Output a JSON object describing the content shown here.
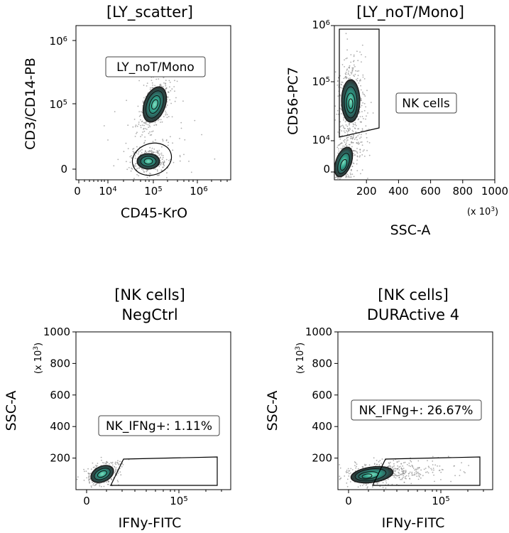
{
  "chart_data": [
    {
      "type": "scatter",
      "panel": "top-left",
      "title": "[LY_scatter]",
      "xlabel": "CD45-KrO",
      "ylabel": "CD3/CD14-PB",
      "x_scale": "biexponential",
      "y_scale": "biexponential",
      "x_ticks": [
        "0",
        "10^4",
        "10^5",
        "10^6"
      ],
      "y_ticks": [
        "0",
        "10^5",
        "10^6"
      ],
      "gate_label": "LY_noT/Mono",
      "populations": [
        {
          "x_center": "1e5",
          "y_center": "1e5"
        },
        {
          "x_center": "1e5",
          "y_center": "0"
        }
      ]
    },
    {
      "type": "scatter",
      "panel": "top-right",
      "title": "[LY_noT/Mono]",
      "xlabel": "SSC-A",
      "ylabel": "CD56-PC7",
      "x_multiplier": "(x 10^3)",
      "xlim": [
        0,
        1000
      ],
      "x_ticks": [
        200,
        400,
        600,
        800,
        1000
      ],
      "y_ticks": [
        "0",
        "10^4",
        "10^5",
        "10^6"
      ],
      "gate_label": "NK cells"
    },
    {
      "type": "scatter",
      "panel": "bottom-left",
      "title": "[NK cells]",
      "subtitle": "NegCtrl",
      "xlabel": "IFNy-FITC",
      "ylabel": "SSC-A",
      "y_multiplier": "(x 10^3)",
      "ylim": [
        0,
        1000
      ],
      "y_ticks": [
        200,
        400,
        600,
        800,
        1000
      ],
      "x_ticks": [
        "0",
        "10^5"
      ],
      "gate_label": "NK_IFNg+: 1.11%",
      "gate_percent": 1.11
    },
    {
      "type": "scatter",
      "panel": "bottom-right",
      "title": "[NK cells]",
      "subtitle": "DURActive 4",
      "xlabel": "IFNy-FITC",
      "ylabel": "SSC-A",
      "y_multiplier": "(x 10^3)",
      "ylim": [
        0,
        1000
      ],
      "y_ticks": [
        200,
        400,
        600,
        800,
        1000
      ],
      "x_ticks": [
        "0",
        "10^5"
      ],
      "gate_label": "NK_IFNg+: 26.67%",
      "gate_percent": 26.67
    }
  ]
}
